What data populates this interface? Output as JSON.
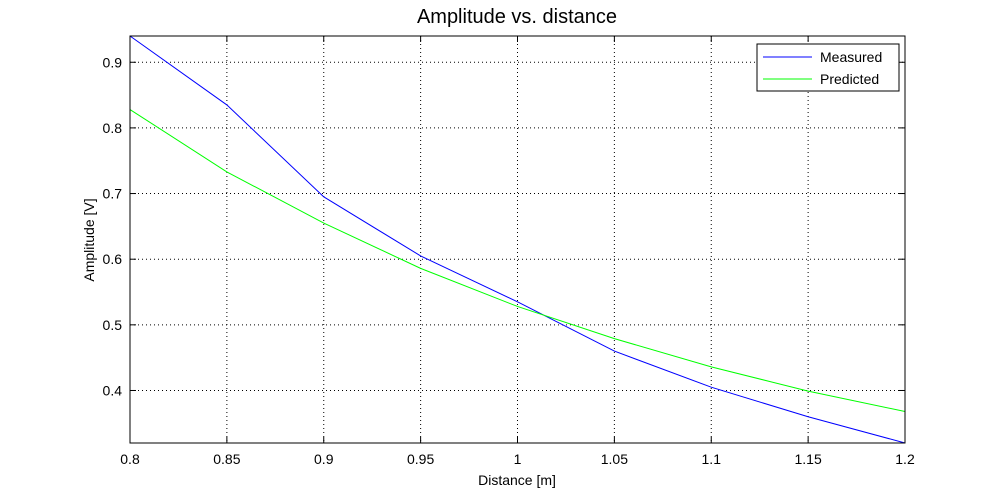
{
  "chart_data": {
    "type": "line",
    "title": "Amplitude vs. distance",
    "xlabel": "Distance [m]",
    "ylabel": "Amplitude [V]",
    "xlim": [
      0.8,
      1.2
    ],
    "ylim": [
      0.32,
      0.94
    ],
    "xticks": [
      "0.8",
      "0.85",
      "0.9",
      "0.95",
      "1",
      "1.05",
      "1.1",
      "1.15",
      "1.2"
    ],
    "yticks": [
      "0.4",
      "0.5",
      "0.6",
      "0.7",
      "0.8",
      "0.9"
    ],
    "grid": true,
    "legend_position": "top-right",
    "x": [
      0.8,
      0.85,
      0.9,
      0.95,
      1.0,
      1.05,
      1.1,
      1.15,
      1.2
    ],
    "series": [
      {
        "name": "Measured",
        "color": "#0000ff",
        "values": [
          0.94,
          0.835,
          0.695,
          0.605,
          0.535,
          0.46,
          0.405,
          0.36,
          0.32
        ]
      },
      {
        "name": "Predicted",
        "color": "#00ff00",
        "values": [
          0.828,
          0.733,
          0.655,
          0.586,
          0.528,
          0.479,
          0.436,
          0.399,
          0.368
        ]
      }
    ]
  }
}
